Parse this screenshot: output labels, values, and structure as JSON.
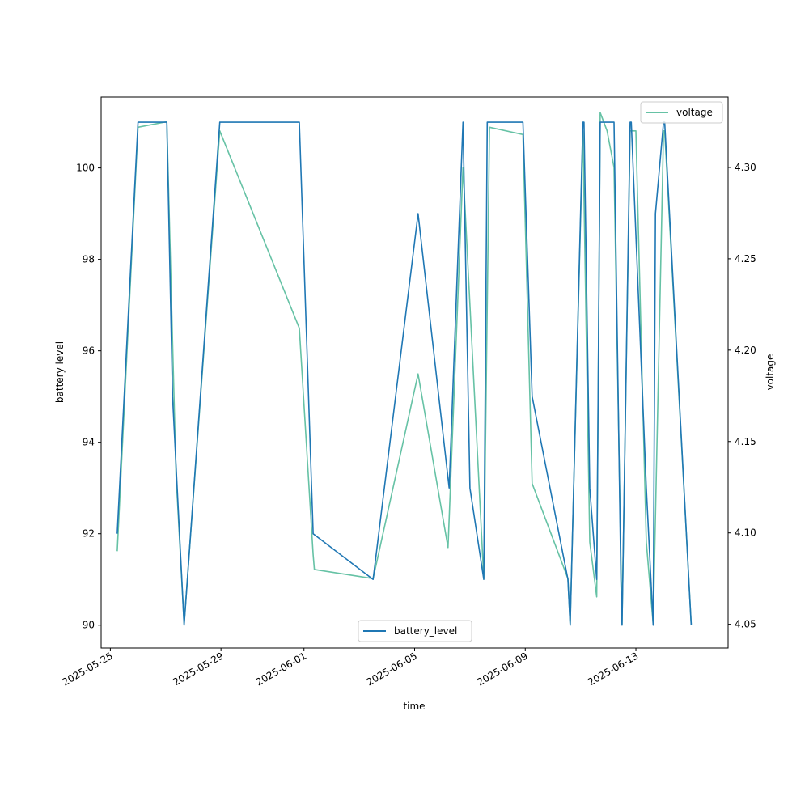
{
  "chart_data": {
    "type": "line",
    "xlabel": "time",
    "ylabel_left": "battery level",
    "ylabel_right": "voltage",
    "x_range": [
      "2025-05-24T16:00",
      "2025-06-16T08:00"
    ],
    "ylim_left": [
      89.5,
      101.55
    ],
    "ylim_right": [
      4.037,
      4.3385
    ],
    "x_ticks": [
      "2025-05-25",
      "2025-05-29",
      "2025-06-01",
      "2025-06-05",
      "2025-06-09",
      "2025-06-13"
    ],
    "y_ticks_left": [
      "90",
      "92",
      "94",
      "96",
      "98",
      "100"
    ],
    "y_ticks_right": [
      "4.05",
      "4.10",
      "4.15",
      "4.20",
      "4.25",
      "4.30"
    ],
    "legends": [
      {
        "label": "battery_level",
        "placement": "lower center",
        "color": "#1f77b4"
      },
      {
        "label": "voltage",
        "placement": "upper right",
        "color": "#66c2a5"
      }
    ],
    "series": [
      {
        "name": "battery_level",
        "axis": "left",
        "color": "#1f77b4",
        "x": [
          "2025-05-25T06:00",
          "2025-05-26T00:00",
          "2025-05-27T01:00",
          "2025-05-27T06:00",
          "2025-05-27T16:00",
          "2025-05-28T23:00",
          "2025-05-31T20:00",
          "2025-06-01T08:00",
          "2025-06-03T12:00",
          "2025-06-05T03:00",
          "2025-06-06T06:00",
          "2025-06-06T18:00",
          "2025-06-07T00:00",
          "2025-06-07T12:00",
          "2025-06-07T15:00",
          "2025-06-08T22:00",
          "2025-06-09T06:00",
          "2025-06-10T13:00",
          "2025-06-10T15:00",
          "2025-06-11T02:00",
          "2025-06-11T03:00",
          "2025-06-11T08:00",
          "2025-06-11T14:00",
          "2025-06-11T17:00",
          "2025-06-12T05:00",
          "2025-06-12T11:00",
          "2025-06-12T12:00",
          "2025-06-12T19:00",
          "2025-06-12T20:00",
          "2025-06-13T09:00",
          "2025-06-13T15:00",
          "2025-06-13T17:00",
          "2025-06-14T00:00",
          "2025-06-14T01:00",
          "2025-06-15T00:00"
        ],
        "values": [
          92,
          101,
          101,
          95,
          90,
          101,
          101,
          92,
          91,
          99,
          93,
          101,
          93,
          91,
          101,
          101,
          95,
          91,
          90,
          101,
          101,
          93,
          91,
          101,
          101,
          91,
          90,
          101,
          101,
          93,
          90,
          99,
          101,
          101,
          90
        ]
      },
      {
        "name": "voltage",
        "axis": "right",
        "color": "#66c2a5",
        "x": [
          "2025-05-25T06:00",
          "2025-05-26T00:00",
          "2025-05-27T01:00",
          "2025-05-27T09:00",
          "2025-05-27T16:00",
          "2025-05-28T23:00",
          "2025-05-31T20:00",
          "2025-06-01T08:00",
          "2025-06-01T09:00",
          "2025-06-03T12:00",
          "2025-06-05T03:00",
          "2025-06-06T05:00",
          "2025-06-06T18:00",
          "2025-06-07T12:00",
          "2025-06-07T17:00",
          "2025-06-08T22:00",
          "2025-06-09T06:00",
          "2025-06-10T13:00",
          "2025-06-10T15:00",
          "2025-06-11T02:00",
          "2025-06-11T08:00",
          "2025-06-11T14:00",
          "2025-06-11T17:00",
          "2025-06-11T23:00",
          "2025-06-12T05:00",
          "2025-06-12T12:00",
          "2025-06-12T19:00",
          "2025-06-13T00:00",
          "2025-06-13T09:00",
          "2025-06-13T15:00",
          "2025-06-14T00:00",
          "2025-06-14T01:00",
          "2025-06-15T00:00"
        ],
        "values": [
          4.09,
          4.322,
          4.325,
          4.132,
          4.05,
          4.32,
          4.212,
          4.088,
          4.08,
          4.075,
          4.187,
          4.092,
          4.3,
          4.075,
          4.322,
          4.318,
          4.127,
          4.075,
          4.05,
          4.32,
          4.095,
          4.065,
          4.33,
          4.32,
          4.3,
          4.05,
          4.32,
          4.32,
          4.095,
          4.05,
          4.32,
          4.32,
          4.05
        ]
      }
    ]
  }
}
